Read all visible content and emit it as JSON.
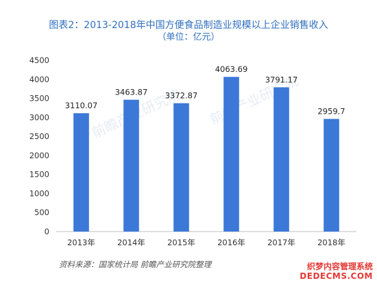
{
  "chart_data": {
    "type": "bar",
    "title": "图表2：2013-2018年中国方便食品制造业规模以上企业销售收入",
    "subtitle": "（单位：亿元）",
    "categories": [
      "2013年",
      "2014年",
      "2015年",
      "2016年",
      "2017年",
      "2018年"
    ],
    "values": [
      3110.07,
      3463.87,
      3372.87,
      4063.69,
      3791.17,
      2959.7
    ],
    "value_labels": [
      "3110.07",
      "3463.87",
      "3372.87",
      "4063.69",
      "3791.17",
      "2959.7"
    ],
    "ylim": [
      0,
      4500
    ],
    "yticks": [
      0,
      500,
      1000,
      1500,
      2000,
      2500,
      3000,
      3500,
      4000,
      4500
    ],
    "grid": false,
    "legend": "none",
    "bar_color": "#3b78d8"
  },
  "source_note": "资料来源：国家统计局 前瞻产业研究院整理",
  "watermark": {
    "brand_line": "前瞻产业研究院",
    "corner_line1": "织梦内容管理系统",
    "corner_line2": "DEDECMS.COM"
  }
}
